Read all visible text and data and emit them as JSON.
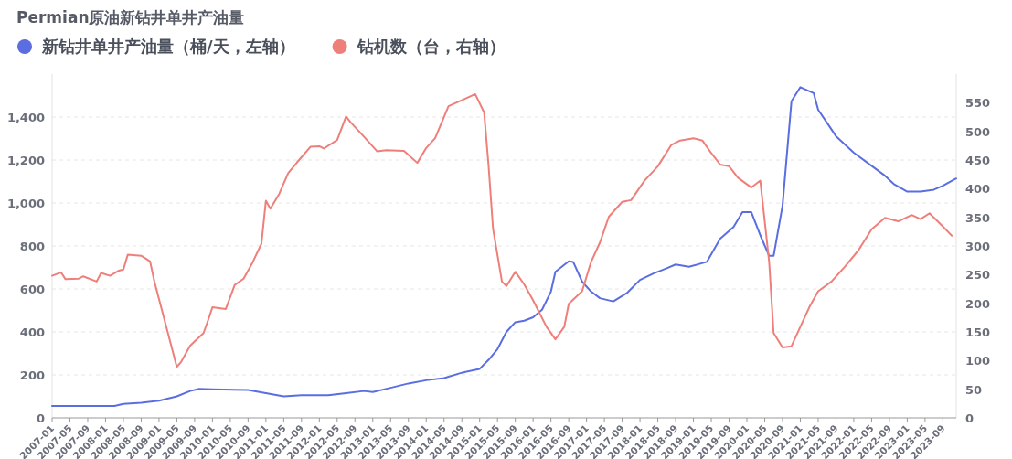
{
  "chart_data": {
    "type": "line",
    "title": "Permian原油新钻井单井产油量",
    "legend": "top left",
    "grid": "y",
    "xlim": [
      "2007-01",
      "2023-12"
    ],
    "xticks": [
      "2007-01",
      "2007-05",
      "2007-09",
      "2008-01",
      "2008-05",
      "2008-09",
      "2009-01",
      "2009-05",
      "2009-09",
      "2010-01",
      "2010-05",
      "2010-09",
      "2011-01",
      "2011-05",
      "2011-09",
      "2012-01",
      "2012-05",
      "2012-09",
      "2013-01",
      "2013-05",
      "2013-09",
      "2014-01",
      "2014-05",
      "2014-09",
      "2015-01",
      "2015-05",
      "2015-09",
      "2016-01",
      "2016-05",
      "2016-09",
      "2017-01",
      "2017-05",
      "2017-09",
      "2018-01",
      "2018-05",
      "2018-09",
      "2019-01",
      "2019-05",
      "2019-09",
      "2020-01",
      "2020-05",
      "2020-09",
      "2021-01",
      "2021-05",
      "2021-09",
      "2022-01",
      "2022-05",
      "2022-09",
      "2023-01",
      "2023-05",
      "2023-09"
    ],
    "ylim": [
      0,
      1600
    ],
    "yticks": [
      0,
      200,
      400,
      600,
      800,
      {
        "value": 1000,
        "label": "1,000"
      },
      {
        "value": 1200,
        "label": "1,200"
      },
      {
        "value": 1400,
        "label": "1,400"
      }
    ],
    "y2lim": [
      0,
      600
    ],
    "y2ticks": [
      0,
      50,
      100,
      150,
      200,
      250,
      300,
      350,
      400,
      450,
      500,
      550
    ],
    "series": [
      {
        "name": "新钻井单井产油量（桶/天，左轴）",
        "color": "#5b6ee1",
        "x": [
          "2007-01",
          "2008-03",
          "2008-05",
          "2008-09",
          "2009-01",
          "2009-05",
          "2009-08",
          "2009-10",
          "2010-01",
          "2010-09",
          "2011-01",
          "2011-05",
          "2011-09",
          "2012-03",
          "2012-07",
          "2012-11",
          "2013-01",
          "2013-05",
          "2013-09",
          "2014-01",
          "2014-05",
          "2014-09",
          "2015-01",
          "2015-03",
          "2015-05",
          "2015-07",
          "2015-09",
          "2015-11",
          "2016-01",
          "2016-03",
          "2016-05",
          "2016-06",
          "2016-09",
          "2016-10",
          "2016-12",
          "2017-02",
          "2017-04",
          "2017-07",
          "2017-10",
          "2018-01",
          "2018-04",
          "2018-07",
          "2018-09",
          "2018-12",
          "2019-04",
          "2019-07",
          "2019-10",
          "2019-12",
          "2020-02",
          "2020-04",
          "2020-06",
          "2020-07",
          "2020-09",
          "2020-11",
          "2021-01",
          "2021-04",
          "2021-05",
          "2021-07",
          "2021-09",
          "2022-01",
          "2022-05",
          "2022-08",
          "2022-10",
          "2023-01",
          "2023-04",
          "2023-07",
          "2023-09",
          "2023-12"
        ],
        "values": [
          55,
          55,
          65,
          70,
          80,
          100,
          125,
          135,
          133,
          130,
          115,
          100,
          105,
          105,
          115,
          125,
          120,
          140,
          160,
          175,
          185,
          210,
          228,
          270,
          320,
          400,
          445,
          452,
          468,
          503,
          588,
          680,
          729,
          726,
          634,
          588,
          557,
          542,
          580,
          642,
          672,
          696,
          714,
          703,
          726,
          834,
          888,
          957,
          957,
          850,
          754,
          754,
          988,
          1473,
          1539,
          1511,
          1434,
          1373,
          1311,
          1234,
          1173,
          1127,
          1088,
          1053,
          1053,
          1062,
          1080,
          1114
        ]
      },
      {
        "name": "钻机数（台，右轴）",
        "color": "#ee7f7a",
        "axis": "y2",
        "x": [
          "2007-01",
          "2007-03",
          "2007-04",
          "2007-07",
          "2007-08",
          "2007-11",
          "2007-12",
          "2008-02",
          "2008-04",
          "2008-05",
          "2008-06",
          "2008-09",
          "2008-11",
          "2008-12",
          "2009-05",
          "2009-06",
          "2009-08",
          "2009-11",
          "2009-12",
          "2010-01",
          "2010-04",
          "2010-06",
          "2010-08",
          "2010-10",
          "2010-12",
          "2011-01",
          "2011-02",
          "2011-04",
          "2011-06",
          "2011-08",
          "2011-11",
          "2012-01",
          "2012-02",
          "2012-05",
          "2012-07",
          "2012-08",
          "2012-11",
          "2013-02",
          "2013-04",
          "2013-08",
          "2013-11",
          "2014-01",
          "2014-03",
          "2014-06",
          "2014-10",
          "2014-12",
          "2015-02",
          "2015-03",
          "2015-04",
          "2015-06",
          "2015-07",
          "2015-09",
          "2015-11",
          "2016-01",
          "2016-04",
          "2016-06",
          "2016-08",
          "2016-09",
          "2016-12",
          "2017-02",
          "2017-04",
          "2017-06",
          "2017-09",
          "2017-11",
          "2018-02",
          "2018-05",
          "2018-08",
          "2018-10",
          "2019-01",
          "2019-03",
          "2019-05",
          "2019-07",
          "2019-09",
          "2019-11",
          "2020-02",
          "2020-04",
          "2020-06",
          "2020-07",
          "2020-09",
          "2020-11",
          "2021-01",
          "2021-03",
          "2021-05",
          "2021-08",
          "2021-11",
          "2022-02",
          "2022-05",
          "2022-08",
          "2022-11",
          "2023-02",
          "2023-04",
          "2023-06",
          "2023-09",
          "2023-11"
        ],
        "values": [
          248,
          254,
          242,
          243,
          247,
          238,
          253,
          248,
          257,
          259,
          285,
          283,
          273,
          237,
          89,
          98,
          126,
          148,
          170,
          193,
          190,
          232,
          243,
          271,
          304,
          379,
          365,
          391,
          427,
          446,
          473,
          474,
          470,
          485,
          526,
          516,
          491,
          465,
          467,
          466,
          445,
          471,
          488,
          544,
          558,
          565,
          533,
          440,
          330,
          238,
          230,
          255,
          233,
          205,
          159,
          137,
          159,
          199,
          221,
          272,
          306,
          351,
          377,
          380,
          414,
          439,
          476,
          484,
          488,
          484,
          462,
          442,
          439,
          419,
          402,
          414,
          272,
          148,
          123,
          125,
          159,
          193,
          221,
          238,
          264,
          292,
          329,
          349,
          343,
          354,
          347,
          357,
          334,
          318
        ]
      }
    ]
  }
}
